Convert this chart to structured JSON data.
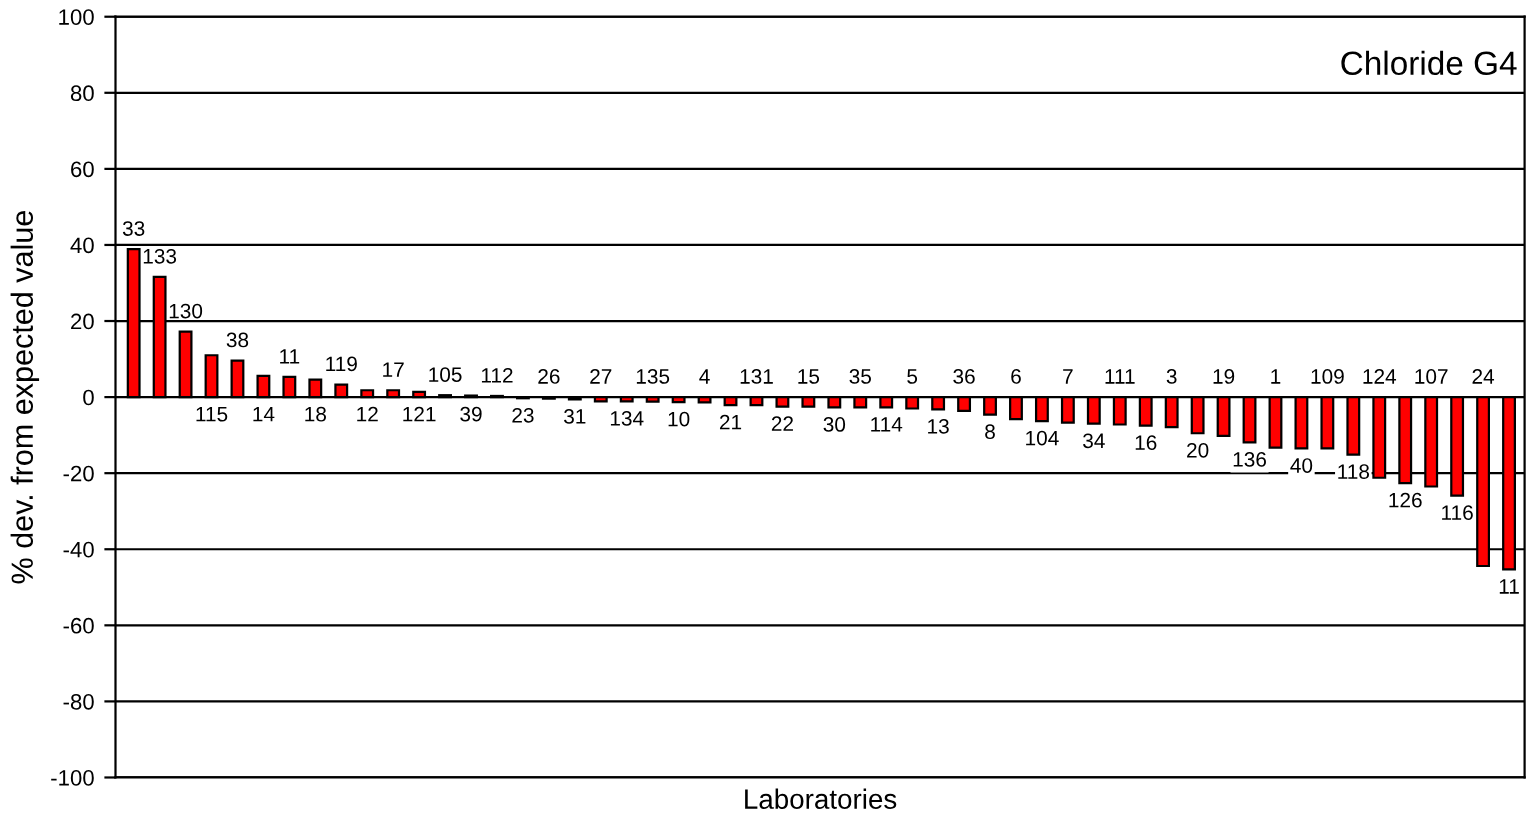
{
  "chart_data": {
    "type": "bar",
    "title": "Chloride G4",
    "xlabel": "Laboratories",
    "ylabel": "% dev. from expected value",
    "categories": [
      "33",
      "133",
      "130",
      "115",
      "38",
      "14",
      "11",
      "18",
      "119",
      "12",
      "17",
      "121",
      "105",
      "39",
      "112",
      "23",
      "26",
      "31",
      "27",
      "134",
      "135",
      "10",
      "4",
      "21",
      "131",
      "22",
      "15",
      "30",
      "35",
      "114",
      "5",
      "13",
      "36",
      "8",
      "6",
      "104",
      "7",
      "34",
      "111",
      "16",
      "3",
      "20",
      "19",
      "136",
      "1",
      "40",
      "109",
      "118",
      "124",
      "126",
      "107",
      "116",
      "24",
      "11"
    ],
    "values": [
      38.9,
      31.6,
      17.2,
      11,
      9.6,
      5.6,
      5.3,
      4.6,
      3.3,
      1.8,
      1.8,
      1.4,
      0.5,
      0.4,
      0.3,
      -0.3,
      -0.4,
      -0.6,
      -1.1,
      -1.1,
      -1.2,
      -1.3,
      -1.4,
      -2.1,
      -2.1,
      -2.5,
      -2.5,
      -2.7,
      -2.7,
      -2.7,
      -3.0,
      -3.2,
      -3.6,
      -4.6,
      -5.8,
      -6.3,
      -6.7,
      -7.0,
      -7.2,
      -7.5,
      -7.9,
      -9.5,
      -10.2,
      -11.9,
      -13.3,
      -13.5,
      -13.5,
      -15.1,
      -21.2,
      -22.6,
      -23.5,
      -25.9,
      -44.4,
      -45.3
    ],
    "color": "#ff0000",
    "ylim": [
      -100,
      100
    ],
    "yticks": [
      -100,
      -80,
      -60,
      -40,
      -20,
      0,
      20,
      40,
      60,
      80,
      100
    ],
    "grid": "y",
    "legend": false
  }
}
